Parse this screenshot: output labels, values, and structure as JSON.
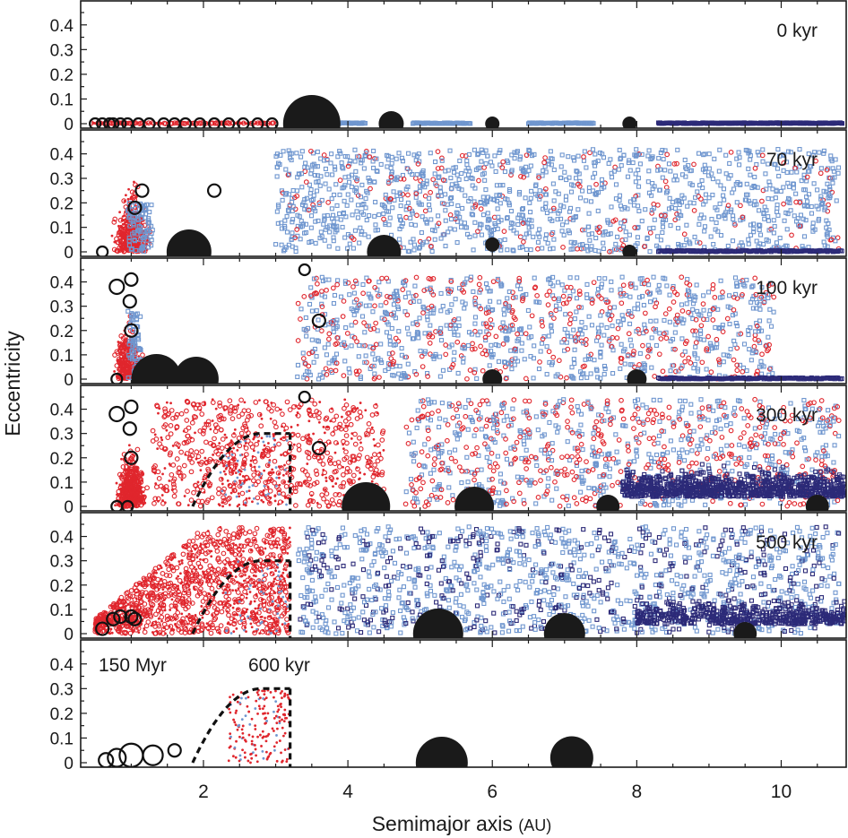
{
  "chart_data": {
    "type": "scatter",
    "xlabel": "Semimajor axis",
    "xlabel_unit": "(AU)",
    "ylabel": "Eccentricity",
    "xlim": [
      0.3,
      10.9
    ],
    "x_ticks": [
      2,
      4,
      6,
      8,
      10
    ],
    "ylim": [
      -0.02,
      0.47
    ],
    "y_ticks": [
      "0",
      "0.1",
      "0.2",
      "0.3",
      "0.4"
    ],
    "colors": {
      "red_bodies": "#e0262d",
      "light_blue_bodies": "#6f96cf",
      "dark_blue_bodies": "#2c2a78",
      "giant_planets": "#1a1a1a"
    },
    "panels": [
      {
        "label": "0 kyr",
        "labels_extra": [],
        "giants": [
          [
            3.5,
            0.0,
            32
          ],
          [
            4.6,
            0.0,
            14
          ],
          [
            6.0,
            0.0,
            8
          ],
          [
            7.9,
            0.0,
            8
          ]
        ],
        "open_circles": [
          [
            0.5,
            0.0,
            6
          ],
          [
            0.6,
            0.0,
            6
          ],
          [
            0.7,
            0.0,
            6
          ],
          [
            0.75,
            0.0,
            6
          ],
          [
            0.85,
            0.0,
            6
          ],
          [
            0.95,
            0.0,
            6
          ],
          [
            1.1,
            0.0,
            6
          ],
          [
            1.25,
            0.0,
            6
          ],
          [
            1.45,
            0.0,
            6
          ],
          [
            1.6,
            0.0,
            6
          ],
          [
            1.75,
            0.0,
            6
          ],
          [
            1.95,
            0.0,
            6
          ],
          [
            2.15,
            0.0,
            6
          ],
          [
            2.35,
            0.0,
            6
          ],
          [
            2.55,
            0.0,
            6
          ],
          [
            2.75,
            0.0,
            6
          ],
          [
            2.95,
            0.0,
            6
          ]
        ],
        "dashed_curve": false
      },
      {
        "label": "70 kyr",
        "labels_extra": [],
        "giants": [
          [
            1.8,
            0.0,
            25
          ],
          [
            4.5,
            0.0,
            19
          ],
          [
            6.0,
            0.03,
            8
          ],
          [
            7.9,
            0.0,
            8
          ]
        ],
        "open_circles": [
          [
            1.15,
            0.25,
            7
          ],
          [
            1.05,
            0.18,
            7
          ],
          [
            2.15,
            0.25,
            7
          ],
          [
            0.6,
            0.0,
            6
          ]
        ],
        "dashed_curve": false
      },
      {
        "label": "100 kyr",
        "labels_extra": [],
        "giants": [
          [
            1.35,
            0.0,
            28
          ],
          [
            1.9,
            0.0,
            25
          ],
          [
            6.0,
            0.0,
            11
          ],
          [
            8.0,
            0.0,
            11
          ]
        ],
        "open_circles": [
          [
            0.8,
            0.38,
            8
          ],
          [
            1.0,
            0.41,
            7
          ],
          [
            0.98,
            0.32,
            7
          ],
          [
            1.0,
            0.2,
            7
          ],
          [
            3.6,
            0.24,
            7
          ],
          [
            3.4,
            0.45,
            6
          ],
          [
            0.8,
            0.0,
            6
          ]
        ],
        "dashed_curve": false
      },
      {
        "label": "300 kyr",
        "labels_extra": [],
        "giants": [
          [
            4.25,
            0.0,
            27
          ],
          [
            5.75,
            0.0,
            22
          ],
          [
            7.6,
            0.0,
            13
          ],
          [
            10.5,
            0.0,
            13
          ]
        ],
        "open_circles": [
          [
            0.8,
            0.38,
            8
          ],
          [
            1.0,
            0.41,
            7
          ],
          [
            0.98,
            0.32,
            7
          ],
          [
            1.0,
            0.2,
            7
          ],
          [
            3.6,
            0.24,
            7
          ],
          [
            3.4,
            0.45,
            6
          ],
          [
            0.8,
            0.0,
            6
          ],
          [
            0.95,
            0.0,
            6
          ]
        ],
        "dashed_curve": true
      },
      {
        "label": "500 kyr",
        "labels_extra": [],
        "giants": [
          [
            5.25,
            0.0,
            28
          ],
          [
            7.0,
            0.0,
            23
          ],
          [
            9.5,
            0.0,
            13
          ]
        ],
        "open_circles": [
          [
            0.6,
            0.02,
            7
          ],
          [
            0.75,
            0.06,
            7
          ],
          [
            0.85,
            0.07,
            7
          ],
          [
            1.0,
            0.07,
            7
          ],
          [
            1.05,
            0.06,
            7
          ]
        ],
        "dashed_curve": true
      },
      {
        "label": "",
        "labels_extra": [
          "150 Myr",
          "600 kyr"
        ],
        "giants": [
          [
            5.3,
            0.0,
            29
          ],
          [
            7.1,
            0.02,
            24
          ]
        ],
        "open_circles": [
          [
            0.65,
            0.01,
            8
          ],
          [
            0.8,
            0.02,
            10
          ],
          [
            1.0,
            0.03,
            13
          ],
          [
            1.3,
            0.03,
            11
          ],
          [
            1.6,
            0.05,
            7
          ]
        ],
        "dashed_curve": true
      }
    ]
  }
}
